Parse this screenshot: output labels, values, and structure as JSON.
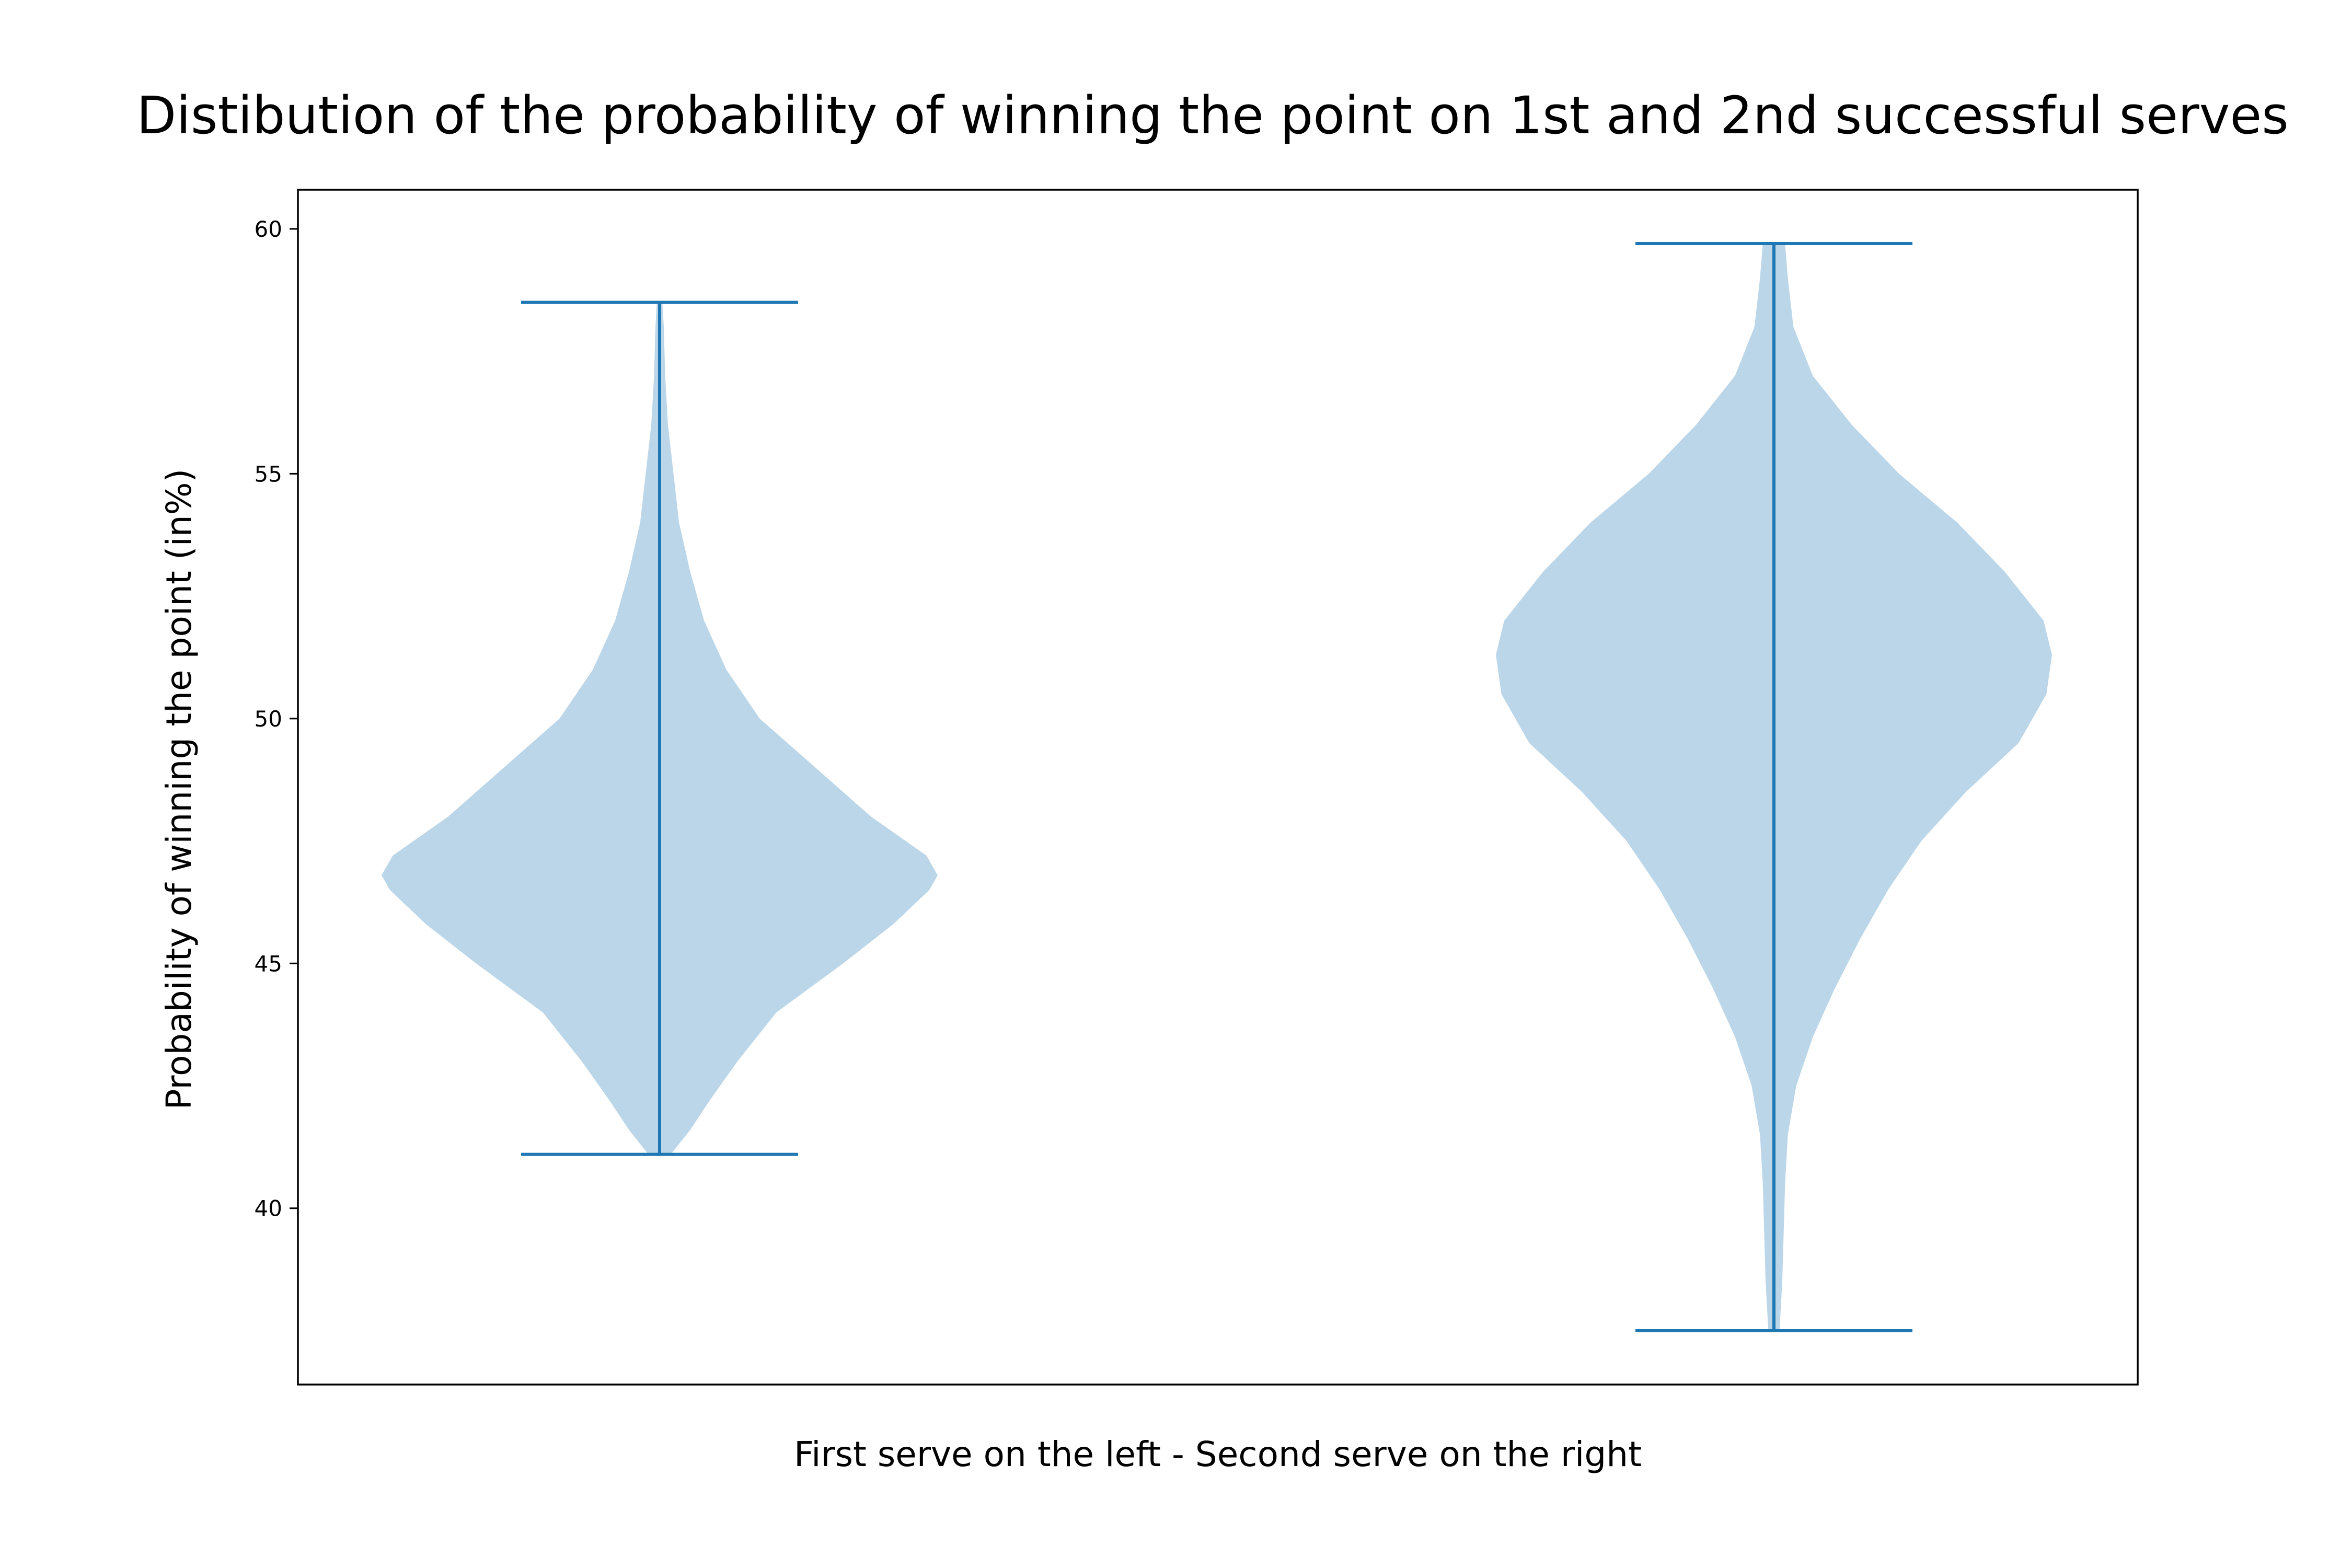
{
  "chart_data": {
    "type": "violin",
    "title": "Distibution of the probability of winning the point on 1st and 2nd successful serves",
    "xlabel": "First serve on the left - Second serve on the right",
    "ylabel": "Probability of winning the point (in%)",
    "ylim": [
      36.4,
      60.8
    ],
    "yticks": [
      40,
      45,
      50,
      55,
      60
    ],
    "grid": false,
    "legend": "none",
    "colors": {
      "body": "#1f77b4",
      "line": "#1f77b4"
    },
    "series": [
      {
        "min": 41.1,
        "max": 58.5,
        "density": [
          [
            41.1,
            0.04
          ],
          [
            41.6,
            0.11
          ],
          [
            42.2,
            0.18
          ],
          [
            43.0,
            0.28
          ],
          [
            44.0,
            0.42
          ],
          [
            45.0,
            0.66
          ],
          [
            45.8,
            0.84
          ],
          [
            46.5,
            0.97
          ],
          [
            46.8,
            1.0
          ],
          [
            47.2,
            0.96
          ],
          [
            48.0,
            0.76
          ],
          [
            49.0,
            0.56
          ],
          [
            50.0,
            0.36
          ],
          [
            51.0,
            0.24
          ],
          [
            52.0,
            0.16
          ],
          [
            53.0,
            0.11
          ],
          [
            54.0,
            0.07
          ],
          [
            55.0,
            0.05
          ],
          [
            56.0,
            0.03
          ],
          [
            57.0,
            0.02
          ],
          [
            58.0,
            0.015
          ],
          [
            58.5,
            0.01
          ]
        ]
      },
      {
        "min": 37.5,
        "max": 59.7,
        "density": [
          [
            37.5,
            0.02
          ],
          [
            38.5,
            0.03
          ],
          [
            39.5,
            0.035
          ],
          [
            40.5,
            0.04
          ],
          [
            41.5,
            0.05
          ],
          [
            42.5,
            0.08
          ],
          [
            43.5,
            0.14
          ],
          [
            44.5,
            0.22
          ],
          [
            45.5,
            0.31
          ],
          [
            46.5,
            0.41
          ],
          [
            47.5,
            0.53
          ],
          [
            48.5,
            0.69
          ],
          [
            49.5,
            0.88
          ],
          [
            50.5,
            0.98
          ],
          [
            51.3,
            1.0
          ],
          [
            52.0,
            0.97
          ],
          [
            53.0,
            0.83
          ],
          [
            54.0,
            0.66
          ],
          [
            55.0,
            0.45
          ],
          [
            56.0,
            0.28
          ],
          [
            57.0,
            0.14
          ],
          [
            58.0,
            0.07
          ],
          [
            59.0,
            0.05
          ],
          [
            59.7,
            0.04
          ]
        ]
      }
    ]
  }
}
